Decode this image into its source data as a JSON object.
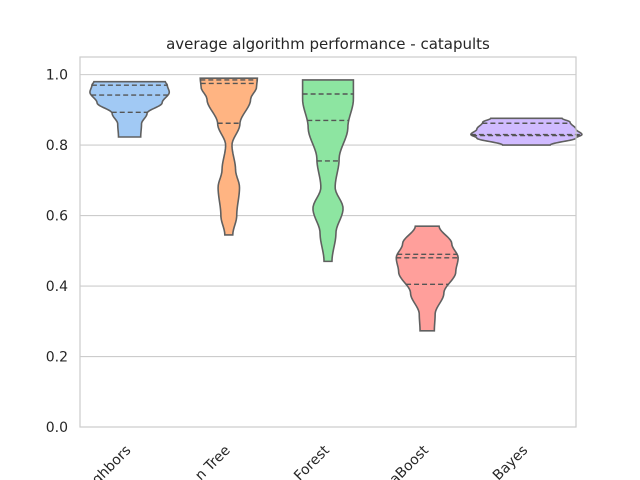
{
  "chart_data": {
    "type": "violin",
    "title": "average algorithm performance - catapults",
    "xlabel": "",
    "ylabel": "",
    "ylim": [
      0.0,
      1.05
    ],
    "yticks": [
      0.0,
      0.2,
      0.4,
      0.6,
      0.8,
      1.0
    ],
    "ytick_labels": [
      "0.0",
      "0.2",
      "0.4",
      "0.6",
      "0.8",
      "1.0"
    ],
    "grid": "horizontal",
    "inner": "quartile",
    "categories": [
      "Nearest Neighbors",
      "Decision Tree",
      "Random Forest",
      "AdaBoost",
      "Naive Bayes"
    ],
    "category_labels_visible": [
      "ghbors",
      "n Tree",
      "Forest",
      "aBoost",
      "Bayes"
    ],
    "colors": [
      "#a1c9f4",
      "#ffb482",
      "#8de5a1",
      "#ff9f9b",
      "#d0bbff"
    ],
    "series": [
      {
        "min": 0.823,
        "max": 0.98,
        "q1": 0.893,
        "median": 0.942,
        "q3": 0.97,
        "profile": [
          [
            0.823,
            0.28
          ],
          [
            0.86,
            0.3
          ],
          [
            0.89,
            0.44
          ],
          [
            0.92,
            0.82
          ],
          [
            0.95,
            1.0
          ],
          [
            0.97,
            0.95
          ],
          [
            0.98,
            0.9
          ]
        ]
      },
      {
        "min": 0.545,
        "max": 0.99,
        "q1": 0.862,
        "median": 0.975,
        "q3": 0.985,
        "profile": [
          [
            0.545,
            0.1
          ],
          [
            0.6,
            0.2
          ],
          [
            0.68,
            0.27
          ],
          [
            0.73,
            0.17
          ],
          [
            0.8,
            0.08
          ],
          [
            0.86,
            0.28
          ],
          [
            0.93,
            0.55
          ],
          [
            0.965,
            0.7
          ],
          [
            0.99,
            0.72
          ]
        ]
      },
      {
        "min": 0.47,
        "max": 0.985,
        "q1": 0.755,
        "median": 0.87,
        "q3": 0.945,
        "profile": [
          [
            0.47,
            0.1
          ],
          [
            0.55,
            0.2
          ],
          [
            0.62,
            0.38
          ],
          [
            0.68,
            0.18
          ],
          [
            0.76,
            0.28
          ],
          [
            0.85,
            0.5
          ],
          [
            0.93,
            0.64
          ],
          [
            0.985,
            0.64
          ]
        ]
      },
      {
        "min": 0.273,
        "max": 0.57,
        "q1": 0.405,
        "median": 0.48,
        "q3": 0.49,
        "profile": [
          [
            0.273,
            0.18
          ],
          [
            0.32,
            0.2
          ],
          [
            0.38,
            0.42
          ],
          [
            0.44,
            0.72
          ],
          [
            0.48,
            0.78
          ],
          [
            0.52,
            0.62
          ],
          [
            0.57,
            0.3
          ]
        ]
      },
      {
        "min": 0.8,
        "max": 0.876,
        "q1": 0.827,
        "median": 0.83,
        "q3": 0.862,
        "profile": [
          [
            0.8,
            0.6
          ],
          [
            0.82,
            1.25
          ],
          [
            0.83,
            1.4
          ],
          [
            0.845,
            1.25
          ],
          [
            0.865,
            1.1
          ],
          [
            0.876,
            0.9
          ]
        ]
      }
    ]
  }
}
